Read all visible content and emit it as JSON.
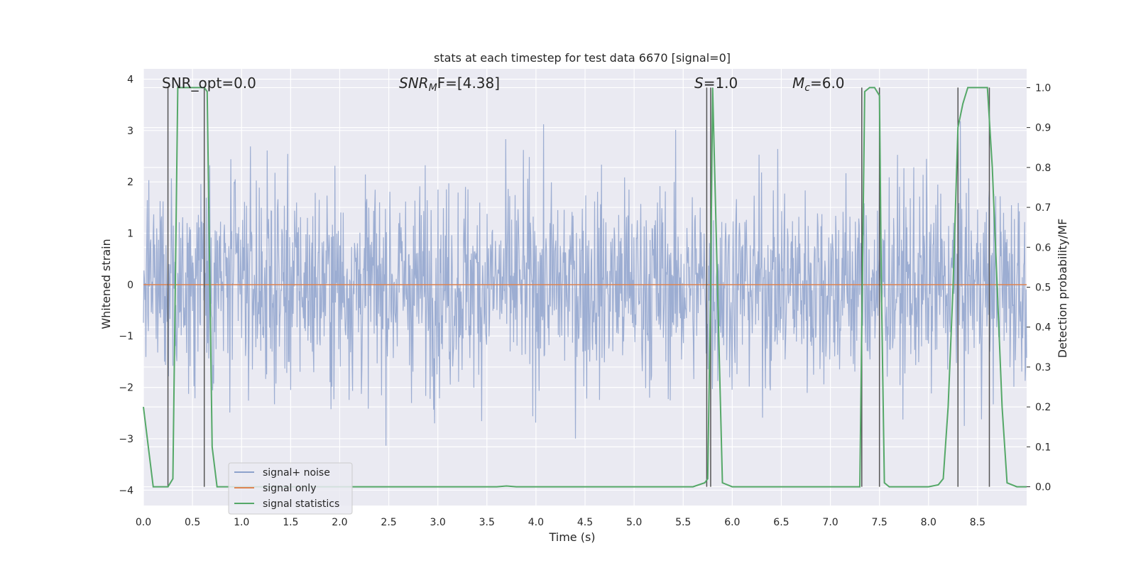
{
  "chart_data": {
    "type": "line",
    "title": "stats at each timestep for test data 6670 [signal=0]",
    "xlabel": "Time (s)",
    "ylabel_left": "Whitened strain",
    "ylabel_right": "Detection probability/MF",
    "xlim": [
      0.0,
      9.0
    ],
    "ylim_left": [
      -4.3,
      4.2
    ],
    "ylim_right": [
      -0.047,
      1.047
    ],
    "x_ticks": [
      "0.0",
      "0.5",
      "1.0",
      "1.5",
      "2.0",
      "2.5",
      "3.0",
      "3.5",
      "4.0",
      "4.5",
      "5.0",
      "5.5",
      "6.0",
      "6.5",
      "7.0",
      "7.5",
      "8.0",
      "8.5"
    ],
    "y_ticks_left": [
      "−4",
      "−3",
      "−2",
      "−1",
      "0",
      "1",
      "2",
      "3",
      "4"
    ],
    "y_ticks_right": [
      "0.0",
      "0.1",
      "0.2",
      "0.3",
      "0.4",
      "0.5",
      "0.6",
      "0.7",
      "0.8",
      "0.9",
      "1.0"
    ],
    "grid": true,
    "legend_position": "lower-left",
    "annotations": {
      "snr_opt": "SNR_opt=0.0",
      "snr_mf_main": "SNR",
      "snr_mf_sub": "M",
      "snr_mf_tail": "F=[4.38]",
      "s_main": "S",
      "s_tail": "=1.0",
      "mc_main": "M",
      "mc_sub": "c",
      "mc_tail": "=6.0"
    },
    "series": [
      {
        "name": "signal+ noise",
        "color": "#8ea2cc",
        "description_points": "dense noise between approx -3.5 and 3.8, std ~1"
      },
      {
        "name": "signal only",
        "color": "#dd8452",
        "constant_value": 0
      },
      {
        "name": "signal statistics",
        "color": "#55a868",
        "x": [
          0.0,
          0.05,
          0.1,
          0.15,
          0.2,
          0.25,
          0.3,
          0.35,
          0.4,
          0.45,
          0.5,
          0.55,
          0.6,
          0.62,
          0.65,
          0.7,
          0.75,
          0.8,
          0.9,
          1.0,
          2.0,
          3.0,
          3.6,
          3.7,
          3.8,
          4.0,
          5.0,
          5.6,
          5.72,
          5.75,
          5.78,
          5.8,
          5.85,
          5.9,
          6.0,
          7.0,
          7.3,
          7.35,
          7.4,
          7.45,
          7.5,
          7.52,
          7.55,
          7.6,
          7.8,
          8.0,
          8.1,
          8.15,
          8.2,
          8.25,
          8.3,
          8.35,
          8.4,
          8.45,
          8.5,
          8.6,
          8.65,
          8.7,
          8.75,
          8.8,
          8.9,
          9.0
        ],
        "y": [
          0.2,
          0.1,
          0.0,
          0.0,
          0.0,
          0.0,
          0.02,
          1.0,
          1.0,
          1.0,
          1.0,
          1.0,
          1.0,
          1.0,
          0.99,
          0.1,
          0.0,
          0.0,
          0.0,
          0.0,
          0.0,
          0.0,
          0.0,
          0.002,
          0.0,
          0.0,
          0.0,
          0.0,
          0.01,
          0.02,
          0.5,
          1.0,
          0.5,
          0.01,
          0.0,
          0.0,
          0.0,
          0.99,
          1.0,
          1.0,
          0.98,
          0.5,
          0.01,
          0.0,
          0.0,
          0.0,
          0.005,
          0.02,
          0.2,
          0.5,
          0.9,
          0.96,
          1.0,
          1.0,
          1.0,
          1.0,
          0.8,
          0.5,
          0.2,
          0.01,
          0.0,
          0.0
        ]
      }
    ],
    "vertical_markers_x": [
      0.25,
      0.62,
      5.74,
      5.78,
      7.32,
      7.5,
      8.3,
      8.62
    ]
  }
}
